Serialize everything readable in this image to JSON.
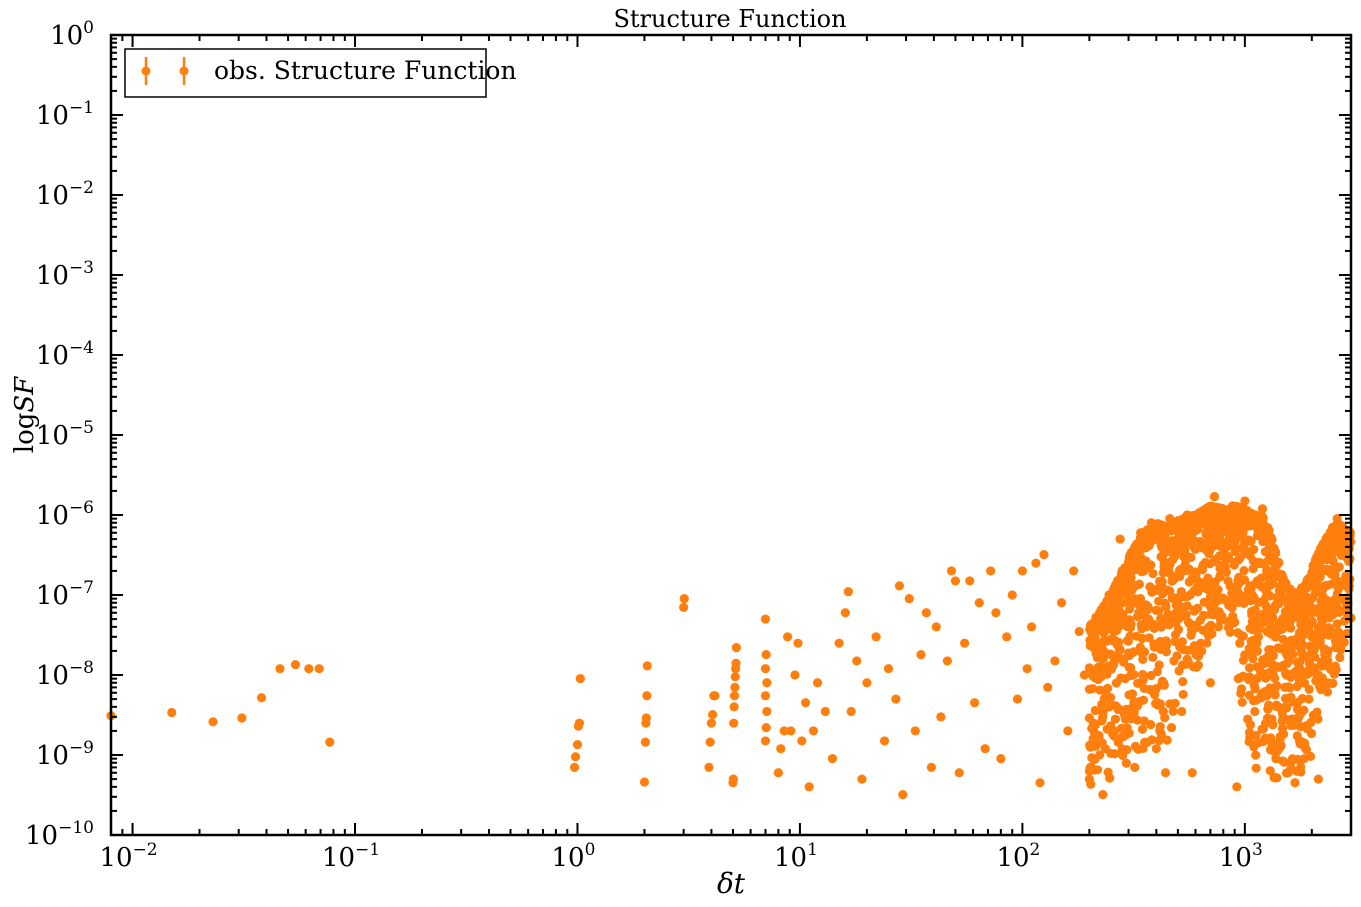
{
  "chart_data": {
    "type": "scatter",
    "title": "Structure Function",
    "xlabel": "δt",
    "ylabel": "log SF",
    "xscale": "log",
    "yscale": "log",
    "xlim": [
      0.008,
      3000
    ],
    "ylim": [
      1e-10,
      1
    ],
    "grid": false,
    "legend": {
      "position": "top-left",
      "entries": [
        "obs. Structure Function"
      ]
    },
    "x_major_ticks": [
      {
        "value": 0.01,
        "label": "10",
        "exp": "−2"
      },
      {
        "value": 0.1,
        "label": "10",
        "exp": "−1"
      },
      {
        "value": 1,
        "label": "10",
        "exp": "0"
      },
      {
        "value": 10,
        "label": "10",
        "exp": "1"
      },
      {
        "value": 100,
        "label": "10",
        "exp": "2"
      },
      {
        "value": 1000,
        "label": "10",
        "exp": "3"
      }
    ],
    "y_major_ticks": [
      {
        "value": 1,
        "label": "10",
        "exp": "0"
      },
      {
        "value": 0.1,
        "label": "10",
        "exp": "−1"
      },
      {
        "value": 0.01,
        "label": "10",
        "exp": "−2"
      },
      {
        "value": 0.001,
        "label": "10",
        "exp": "−3"
      },
      {
        "value": 0.0001,
        "label": "10",
        "exp": "−4"
      },
      {
        "value": 1e-05,
        "label": "10",
        "exp": "−5"
      },
      {
        "value": 1e-06,
        "label": "10",
        "exp": "−6"
      },
      {
        "value": 1e-07,
        "label": "10",
        "exp": "−7"
      },
      {
        "value": 1e-08,
        "label": "10",
        "exp": "−8"
      },
      {
        "value": 1e-09,
        "label": "10",
        "exp": "−9"
      },
      {
        "value": 1e-10,
        "label": "10",
        "exp": "−10"
      }
    ],
    "series": [
      {
        "name": "obs. Structure Function",
        "color": "#ff7f0e",
        "marker": "circle",
        "points": [
          [
            0.008,
            3.1e-09
          ],
          [
            0.015,
            3.4e-09
          ],
          [
            0.023,
            2.6e-09
          ],
          [
            0.031,
            2.9e-09
          ],
          [
            0.038,
            5.2e-09
          ],
          [
            0.046,
            1.2e-08
          ],
          [
            0.054,
            1.35e-08
          ],
          [
            0.062,
            1.2e-08
          ],
          [
            0.069,
            1.2e-08
          ],
          [
            0.077,
            1.45e-09
          ],
          [
            0.97,
            7e-10
          ],
          [
            0.98,
            9.5e-10
          ],
          [
            1.0,
            1.35e-09
          ],
          [
            1.01,
            2.3e-09
          ],
          [
            1.02,
            2.5e-09
          ],
          [
            1.03,
            9e-09
          ],
          [
            2.0,
            4.6e-10
          ],
          [
            2.02,
            1.45e-09
          ],
          [
            2.03,
            2.5e-09
          ],
          [
            2.04,
            2.9e-09
          ],
          [
            2.05,
            5.5e-09
          ],
          [
            2.06,
            1.3e-08
          ],
          [
            3.0,
            7e-08
          ],
          [
            3.02,
            9e-08
          ],
          [
            3.9,
            7e-10
          ],
          [
            3.95,
            1.45e-09
          ],
          [
            4.0,
            2.5e-09
          ],
          [
            4.05,
            3.2e-09
          ],
          [
            4.1,
            5.5e-09
          ],
          [
            4.15,
            5.5e-09
          ],
          [
            5.0,
            4.5e-10
          ],
          [
            5.02,
            5e-10
          ],
          [
            5.04,
            2.5e-09
          ],
          [
            5.06,
            4e-09
          ],
          [
            5.08,
            5.5e-09
          ],
          [
            5.1,
            7e-09
          ],
          [
            5.12,
            9.5e-09
          ],
          [
            5.14,
            1.2e-08
          ],
          [
            5.16,
            1.4e-08
          ],
          [
            5.18,
            2.2e-08
          ],
          [
            7.0,
            5e-08
          ],
          [
            7.0,
            1.5e-09
          ],
          [
            7.05,
            2.2e-09
          ],
          [
            7.1,
            3.5e-09
          ],
          [
            7.0,
            5.5e-09
          ],
          [
            7.1,
            8e-09
          ],
          [
            7.0,
            1.2e-08
          ],
          [
            7.05,
            1.8e-08
          ],
          [
            8.0,
            6e-10
          ],
          [
            8.2,
            1.2e-09
          ],
          [
            8.5,
            2e-09
          ],
          [
            8.8,
            3e-08
          ],
          [
            9.1,
            2e-09
          ],
          [
            9.5,
            1e-08
          ],
          [
            9.8,
            2.5e-08
          ],
          [
            10.2,
            1.5e-09
          ],
          [
            10.6,
            4.5e-09
          ],
          [
            11.0,
            4e-10
          ],
          [
            11.5,
            2e-09
          ],
          [
            12.0,
            8e-09
          ],
          [
            13.0,
            3.5e-09
          ],
          [
            14.0,
            9e-10
          ],
          [
            15.0,
            2.5e-08
          ],
          [
            16.0,
            6e-08
          ],
          [
            16.5,
            1.1e-07
          ],
          [
            17.0,
            3.5e-09
          ],
          [
            18.0,
            1.5e-08
          ],
          [
            19.0,
            5e-10
          ],
          [
            20.0,
            8e-09
          ],
          [
            22.0,
            3e-08
          ],
          [
            24.0,
            1.5e-09
          ],
          [
            25.0,
            1.2e-08
          ],
          [
            27.0,
            5e-09
          ],
          [
            28.0,
            1.3e-07
          ],
          [
            29.0,
            3.2e-10
          ],
          [
            31.0,
            9e-08
          ],
          [
            33.0,
            2e-09
          ],
          [
            35.0,
            1.8e-08
          ],
          [
            37.0,
            6e-08
          ],
          [
            39.0,
            7e-10
          ],
          [
            41.0,
            4e-08
          ],
          [
            43.0,
            3e-09
          ],
          [
            46.0,
            1.5e-08
          ],
          [
            48.0,
            2e-07
          ],
          [
            50.0,
            1.5e-07
          ],
          [
            52.0,
            6e-10
          ],
          [
            55.0,
            2.5e-08
          ],
          [
            58.0,
            1.5e-07
          ],
          [
            61.0,
            4.5e-09
          ],
          [
            64.0,
            8e-08
          ],
          [
            68.0,
            1.2e-09
          ],
          [
            72.0,
            2e-07
          ],
          [
            76.0,
            6e-08
          ],
          [
            80.0,
            9e-10
          ],
          [
            85.0,
            3e-08
          ],
          [
            90.0,
            1e-07
          ],
          [
            95.0,
            5e-09
          ],
          [
            100.0,
            2e-07
          ],
          [
            105.0,
            1.2e-08
          ],
          [
            110.0,
            4e-08
          ],
          [
            115.0,
            2.5e-07
          ],
          [
            120.0,
            4.5e-10
          ],
          [
            125.0,
            3.2e-07
          ],
          [
            130.0,
            7e-09
          ],
          [
            140.0,
            1.5e-08
          ],
          [
            150.0,
            8e-08
          ],
          [
            160.0,
            2e-09
          ],
          [
            170.0,
            2e-07
          ],
          [
            180.0,
            3.5e-08
          ],
          [
            190.0,
            1e-08
          ],
          [
            200.0,
            5e-10
          ],
          [
            215.0,
            2.5e-08
          ],
          [
            230.0,
            3.2e-10
          ],
          [
            245.0,
            1e-07
          ],
          [
            260.0,
            2e-09
          ],
          [
            275.0,
            5e-07
          ],
          [
            290.0,
            9e-09
          ],
          [
            305.0,
            3e-07
          ],
          [
            320.0,
            7e-10
          ],
          [
            340.0,
            6e-07
          ],
          [
            360.0,
            4e-08
          ],
          [
            380.0,
            8e-07
          ],
          [
            400.0,
            1.2e-09
          ],
          [
            420.0,
            3e-07
          ],
          [
            440.0,
            6e-10
          ],
          [
            460.0,
            9e-07
          ],
          [
            480.0,
            1.5e-08
          ],
          [
            500.0,
            5e-07
          ],
          [
            520.0,
            3.5e-09
          ],
          [
            550.0,
            1e-06
          ],
          [
            580.0,
            6e-10
          ],
          [
            610.0,
            7e-07
          ],
          [
            640.0,
            2e-08
          ],
          [
            670.0,
            1.2e-06
          ],
          [
            700.0,
            8e-09
          ],
          [
            730.0,
            1.7e-06
          ],
          [
            760.0,
            4e-08
          ],
          [
            800.0,
            9e-07
          ],
          [
            840.0,
            1.5e-07
          ],
          [
            880.0,
            1.3e-06
          ],
          [
            920.0,
            4e-10
          ],
          [
            960.0,
            6e-07
          ],
          [
            1000.0,
            1.5e-06
          ],
          [
            1050.0,
            1.2e-07
          ],
          [
            1100.0,
            8e-07
          ],
          [
            1150.0,
            3e-08
          ],
          [
            1200.0,
            1.2e-06
          ],
          [
            1260.0,
            6e-09
          ],
          [
            1320.0,
            3e-07
          ],
          [
            1380.0,
            9e-10
          ],
          [
            1450.0,
            1e-07
          ],
          [
            1520.0,
            4e-09
          ],
          [
            1600.0,
            2.5e-08
          ],
          [
            1680.0,
            4.5e-10
          ],
          [
            1760.0,
            1.5e-09
          ],
          [
            1850.0,
            8e-08
          ],
          [
            1940.0,
            5e-09
          ],
          [
            2040.0,
            2e-07
          ],
          [
            2140.0,
            5e-10
          ],
          [
            2250.0,
            4e-07
          ],
          [
            2360.0,
            1.5e-08
          ],
          [
            2480.0,
            7e-07
          ],
          [
            2600.0,
            9e-07
          ],
          [
            2720.0,
            5e-07
          ],
          [
            2850.0,
            3e-07
          ],
          [
            2980.0,
            6e-07
          ]
        ],
        "dense_band": {
          "x_min": 200,
          "x_max": 3000,
          "envelope": [
            [
              200,
              3e-10,
              4e-08
            ],
            [
              250,
              5e-10,
              1e-07
            ],
            [
              300,
              8e-10,
              3e-07
            ],
            [
              350,
              8e-10,
              6e-07
            ],
            [
              400,
              1e-09,
              8e-07
            ],
            [
              450,
              1.5e-09,
              7e-07
            ],
            [
              500,
              3e-09,
              9e-07
            ],
            [
              600,
              1e-08,
              1e-06
            ],
            [
              700,
              3e-08,
              1.3e-06
            ],
            [
              800,
              4e-08,
              1.2e-06
            ],
            [
              900,
              1.5e-08,
              1.3e-06
            ],
            [
              1000,
              2e-09,
              1.2e-06
            ],
            [
              1100,
              6e-10,
              1e-06
            ],
            [
              1200,
              5e-10,
              1e-06
            ],
            [
              1300,
              4e-10,
              6e-07
            ],
            [
              1500,
              4e-10,
              1.5e-07
            ],
            [
              1700,
              5e-10,
              1e-07
            ],
            [
              1900,
              6e-10,
              1.5e-07
            ],
            [
              2100,
              1.5e-09,
              3e-07
            ],
            [
              2300,
              5e-09,
              5e-07
            ],
            [
              2600,
              1e-08,
              8e-07
            ],
            [
              3000,
              5e-08,
              6e-07
            ]
          ]
        }
      }
    ]
  }
}
